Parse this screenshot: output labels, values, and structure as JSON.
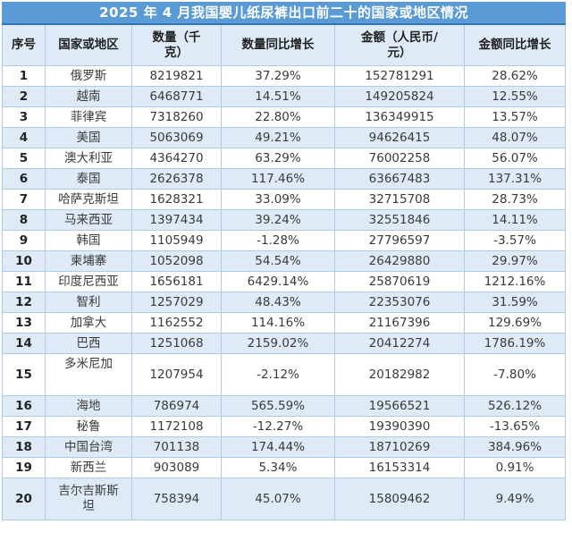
{
  "chart_data": {
    "type": "table",
    "title": "2025 年 4 月我国婴儿纸尿裤出口前二十的国家或地区情况",
    "columns": [
      "序号",
      "国家或地区",
      "数量（千克）",
      "数量同比增长",
      "金额（人民币/元）",
      "金额同比增长"
    ],
    "column_keys": [
      "rank",
      "country",
      "quantity-kg",
      "quantity-yoy-growth",
      "amount-rmb",
      "amount-yoy-growth"
    ],
    "rows": [
      [
        "1",
        "俄罗斯",
        "8219821",
        "37.29%",
        "152781291",
        "28.62%"
      ],
      [
        "2",
        "越南",
        "6468771",
        "14.51%",
        "149205824",
        "12.55%"
      ],
      [
        "3",
        "菲律宾",
        "7318260",
        "22.80%",
        "136349915",
        "13.57%"
      ],
      [
        "4",
        "美国",
        "5063069",
        "49.21%",
        "94626415",
        "48.07%"
      ],
      [
        "5",
        "澳大利亚",
        "4364270",
        "63.29%",
        "76002258",
        "56.07%"
      ],
      [
        "6",
        "泰国",
        "2626378",
        "117.46%",
        "63667483",
        "137.31%"
      ],
      [
        "7",
        "哈萨克斯坦",
        "1628321",
        "33.09%",
        "32715708",
        "28.73%"
      ],
      [
        "8",
        "马来西亚",
        "1397434",
        "39.24%",
        "32551846",
        "14.11%"
      ],
      [
        "9",
        "韩国",
        "1105949",
        "-1.28%",
        "27796597",
        "-3.57%"
      ],
      [
        "10",
        "柬埔寨",
        "1052098",
        "54.54%",
        "26429880",
        "29.97%"
      ],
      [
        "11",
        "印度尼西亚",
        "1656181",
        "6429.14%",
        "25870619",
        "1212.16%"
      ],
      [
        "12",
        "智利",
        "1257029",
        "48.43%",
        "22353076",
        "31.59%"
      ],
      [
        "13",
        "加拿大",
        "1162552",
        "114.16%",
        "21167396",
        "129.69%"
      ],
      [
        "14",
        "巴西",
        "1251068",
        "2159.02%",
        "20412274",
        "1786.19%"
      ],
      [
        "15",
        "多米尼加",
        "1207954",
        "-2.12%",
        "20182982",
        "-7.80%"
      ],
      [
        "16",
        "海地",
        "786974",
        "565.59%",
        "19566521",
        "526.12%"
      ],
      [
        "17",
        "秘鲁",
        "1172108",
        "-12.27%",
        "19390390",
        "-13.65%"
      ],
      [
        "18",
        "中国台湾",
        "701138",
        "174.44%",
        "18710269",
        "384.96%"
      ],
      [
        "19",
        "新西兰",
        "903089",
        "5.34%",
        "16153314",
        "0.91%"
      ],
      [
        "20",
        "吉尔吉斯斯坦",
        "758394",
        "45.07%",
        "15809462",
        "9.49%"
      ]
    ],
    "layout_hints": {
      "banding": "even rows light blue",
      "tall_rows": [
        15,
        20
      ]
    },
    "colors": {
      "title_bar": "#5B9BD5",
      "title_bar_bottom_border": "#2E75B6",
      "title_text": "#FFFFFF",
      "band_fill": "#DEEBF7",
      "grid_line": "#AECBE8",
      "body_text": "#3A3A3A"
    }
  }
}
